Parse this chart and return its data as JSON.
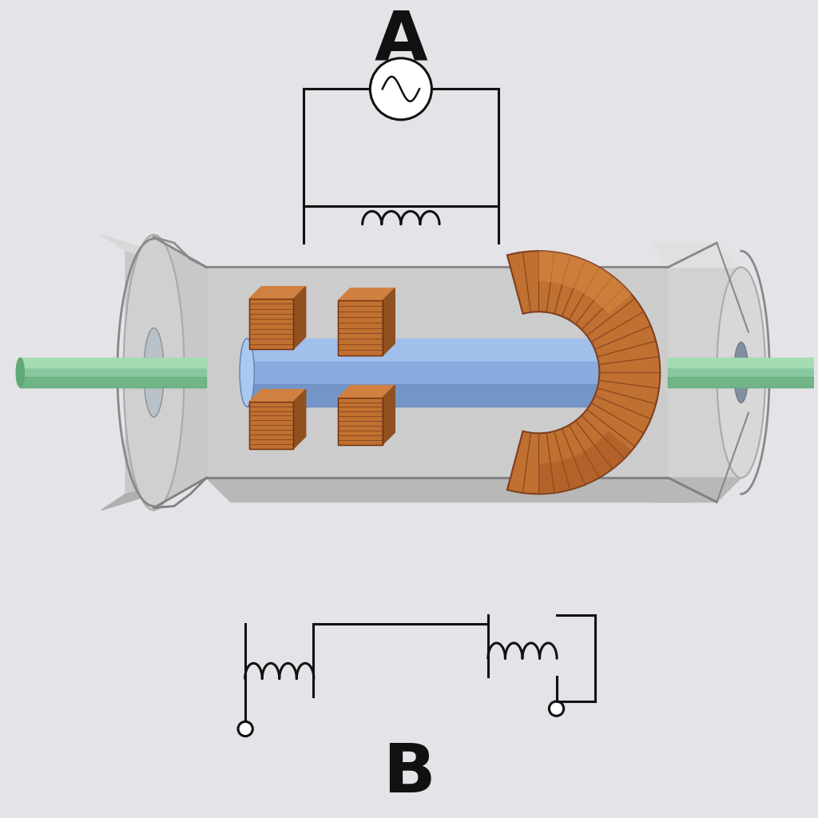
{
  "background_color": "#e4e4e8",
  "label_A": "A",
  "label_B": "B",
  "housing_light": "#e2e2e2",
  "housing_mid": "#c8c8c8",
  "housing_dark": "#a8a8a8",
  "housing_edge": "#909090",
  "coil_main": "#c87838",
  "coil_dark": "#8a4818",
  "coil_light": "#e09050",
  "core_main": "#8aabe0",
  "core_light": "#aac8f0",
  "core_dark": "#6080b0",
  "shaft_main": "#88c8a0",
  "shaft_light": "#aae0b8",
  "shaft_dark": "#60a878",
  "circuit_color": "#111111",
  "line_width": 2.2,
  "figsize": [
    10.24,
    10.24
  ],
  "dpi": 100
}
